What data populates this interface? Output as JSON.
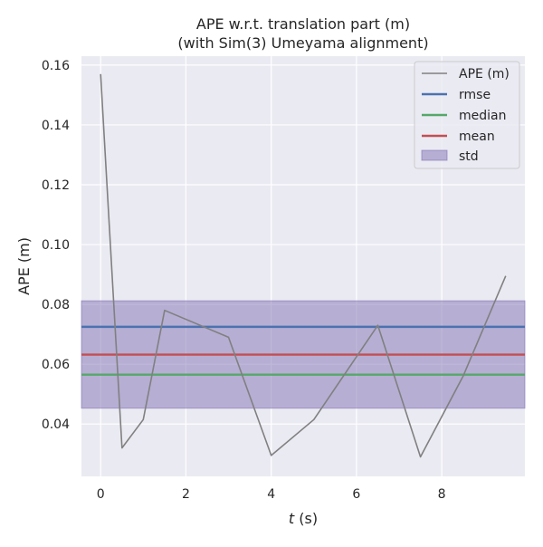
{
  "chart_data": {
    "type": "line",
    "title": "APE w.r.t. translation part (m)",
    "subtitle": "(with Sim(3) Umeyama alignment)",
    "xlabel_italic": "t",
    "xlabel_rest": " (s)",
    "ylabel": "APE (m)",
    "xlim": [
      -0.45,
      9.95
    ],
    "ylim": [
      0.0225,
      0.163
    ],
    "x_ticks": [
      0,
      2,
      4,
      6,
      8
    ],
    "y_ticks": [
      0.04,
      0.06,
      0.08,
      0.1,
      0.12,
      0.14,
      0.16
    ],
    "x_tick_labels": [
      "0",
      "2",
      "4",
      "6",
      "8"
    ],
    "y_tick_labels": [
      "0.04",
      "0.06",
      "0.08",
      "0.10",
      "0.12",
      "0.14",
      "0.16"
    ],
    "grid": true,
    "legend_position": "top-right",
    "series": [
      {
        "name": "APE (m)",
        "color": "#808080",
        "x": [
          0,
          0.5,
          1.0,
          1.5,
          3.0,
          4.0,
          5.0,
          6.5,
          7.5,
          8.5,
          9.5
        ],
        "y": [
          0.157,
          0.032,
          0.0415,
          0.078,
          0.069,
          0.0295,
          0.0415,
          0.073,
          0.029,
          0.056,
          0.0895
        ]
      }
    ],
    "stats": [
      {
        "name": "rmse",
        "color": "#4c72b0",
        "value": 0.0725
      },
      {
        "name": "median",
        "color": "#55a868",
        "value": 0.0565
      },
      {
        "name": "mean",
        "color": "#c44e52",
        "value": 0.0632
      }
    ],
    "std_band": {
      "name": "std",
      "color": "#8172b3",
      "lower": 0.0453,
      "upper": 0.0812
    },
    "colors": {
      "plot_background": "#eaeaf2",
      "grid": "#ffffff"
    }
  }
}
